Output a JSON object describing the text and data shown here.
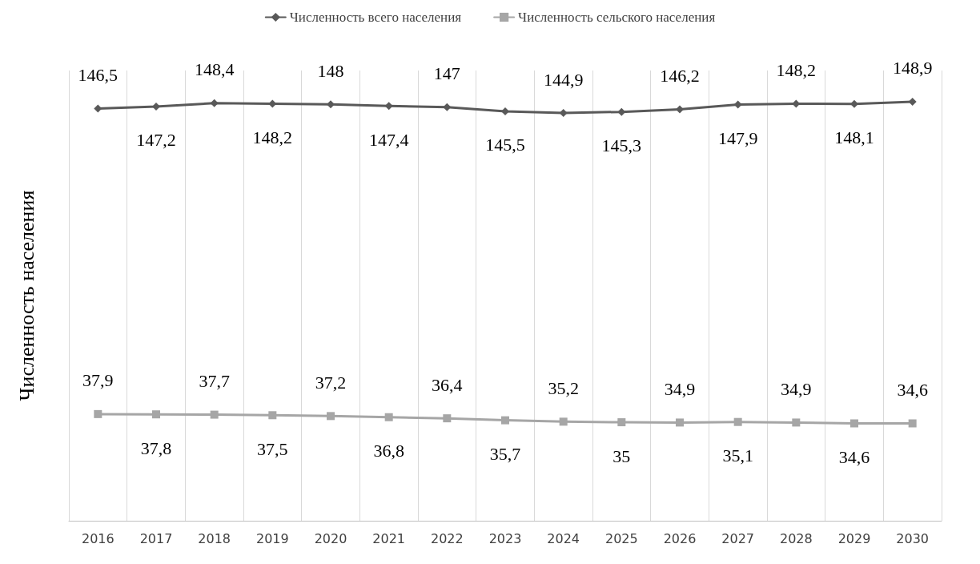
{
  "chart_data": {
    "type": "line",
    "ylabel": "Численность населения",
    "categories": [
      "2016",
      "2017",
      "2018",
      "2019",
      "2020",
      "2021",
      "2022",
      "2023",
      "2024",
      "2025",
      "2026",
      "2027",
      "2028",
      "2029",
      "2030"
    ],
    "series": [
      {
        "name": "Численность всего населения",
        "color": "#595959",
        "marker": "diamond",
        "values": [
          146.5,
          147.2,
          148.4,
          148.2,
          148,
          147.4,
          147,
          145.5,
          144.9,
          145.3,
          146.2,
          147.9,
          148.2,
          148.1,
          148.9
        ],
        "value_labels": [
          "146,5",
          "147,2",
          "148,4",
          "148,2",
          "148",
          "147,4",
          "147",
          "145,5",
          "144,9",
          "145,3",
          "146,2",
          "147,9",
          "148,2",
          "148,1",
          "148,9"
        ]
      },
      {
        "name": "Численность сельского населения",
        "color": "#a6a6a6",
        "marker": "square",
        "values": [
          37.9,
          37.8,
          37.7,
          37.5,
          37.2,
          36.8,
          36.4,
          35.7,
          35.2,
          35,
          34.9,
          35.1,
          34.9,
          34.6,
          34.6
        ],
        "value_labels": [
          "37,9",
          "37,8",
          "37,7",
          "37,5",
          "37,2",
          "36,8",
          "36,4",
          "35,7",
          "35,2",
          "35",
          "34,9",
          "35,1",
          "34,9",
          "34,6",
          "34,6"
        ]
      }
    ],
    "ylim": [
      0,
      160
    ],
    "tick_labels": "x",
    "grid": "x",
    "legend": "top"
  }
}
